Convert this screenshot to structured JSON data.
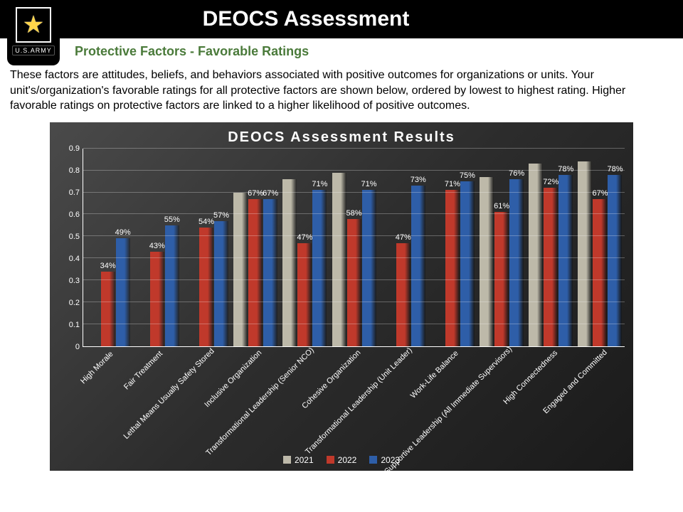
{
  "header": {
    "title": "DEOCS Assessment",
    "logo_text": "U.S.ARMY"
  },
  "subtitle": "Protective Factors - Favorable Ratings",
  "description": "These factors are attitudes, beliefs, and behaviors associated with positive outcomes for organizations or units. Your unit's/organization's favorable ratings for all protective factors are shown below, ordered by lowest to highest rating. Higher favorable ratings on protective factors are linked to a higher likelihood of positive outcomes.",
  "chart": {
    "type": "bar",
    "title": "DEOCS Assessment Results",
    "title_fontsize": 20,
    "background_gradient": [
      "#4a4a4a",
      "#2c2c2c",
      "#1a1a1a"
    ],
    "grid_color": "rgba(255,255,255,0.28)",
    "axis_color": "#ffffff",
    "text_color": "#ffffff",
    "value_label_suffix": "%",
    "ylim": [
      0,
      0.9
    ],
    "ytick_step": 0.1,
    "yticks": [
      "0",
      "0.1",
      "0.2",
      "0.3",
      "0.4",
      "0.5",
      "0.6",
      "0.7",
      "0.8",
      "0.9"
    ],
    "label_fontsize": 11,
    "series": [
      {
        "name": "2021",
        "color": "#bdb9a9"
      },
      {
        "name": "2022",
        "color": "#c0392b"
      },
      {
        "name": "2023",
        "color": "#2e5ea8"
      }
    ],
    "categories": [
      {
        "label": "High Morale",
        "values": [
          null,
          34,
          49
        ]
      },
      {
        "label": "Fair Treatment",
        "values": [
          null,
          43,
          55
        ]
      },
      {
        "label": "Lethal Means Usually Safety Stored",
        "values": [
          null,
          54,
          57
        ]
      },
      {
        "label": "Inclusive Organization",
        "values": [
          70,
          67,
          67
        ]
      },
      {
        "label": "Transformational Leadership (Senior NCO)",
        "values": [
          76,
          47,
          71
        ]
      },
      {
        "label": "Cohesive Organization",
        "values": [
          79,
          58,
          71
        ]
      },
      {
        "label": "Transformational Leadership (Unit Leader)",
        "values": [
          null,
          47,
          73
        ]
      },
      {
        "label": "Work-Life Balance",
        "values": [
          null,
          71,
          75
        ]
      },
      {
        "label": "Supportive Leadership (All Immediate Supervisors)",
        "values": [
          77,
          61,
          76
        ]
      },
      {
        "label": "High Connectedness",
        "values": [
          83,
          72,
          78
        ]
      },
      {
        "label": "Engaged and Committed",
        "values": [
          84,
          67,
          78
        ]
      }
    ],
    "show_labels_for_series": [
      1,
      2
    ]
  }
}
